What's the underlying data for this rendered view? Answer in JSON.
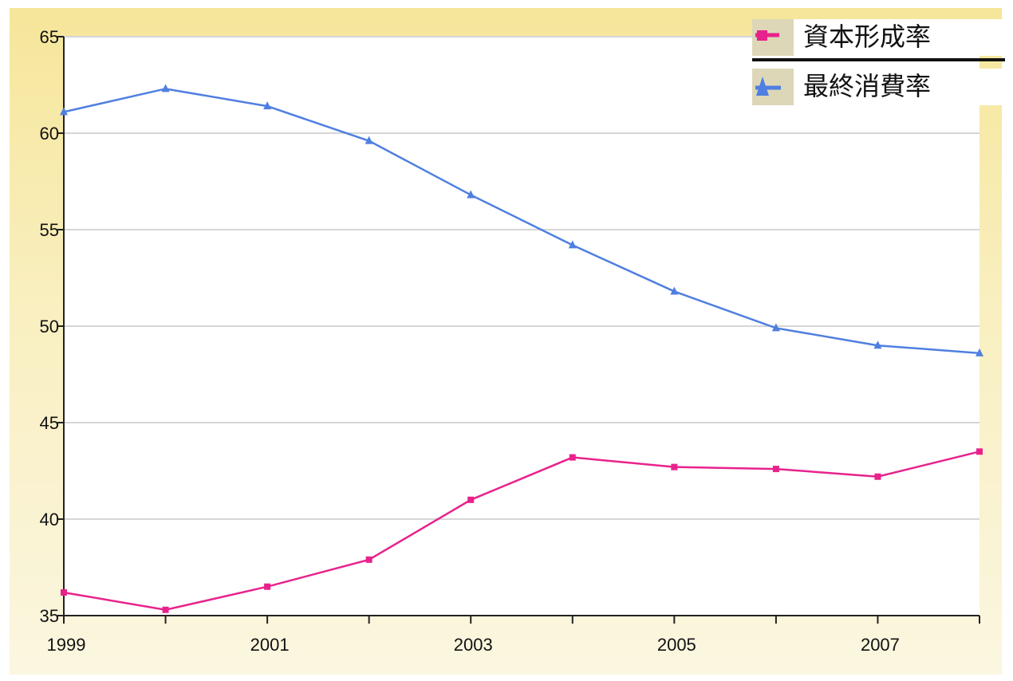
{
  "chart_data": {
    "type": "line",
    "x": [
      1999,
      2000,
      2001,
      2002,
      2003,
      2004,
      2005,
      2006,
      2007,
      2008
    ],
    "x_tick_labels": [
      "1999",
      "2001",
      "2003",
      "2005",
      "2007"
    ],
    "x_tick_values": [
      1999,
      2001,
      2003,
      2005,
      2007
    ],
    "y_tick_labels": [
      "35",
      "40",
      "45",
      "50",
      "55",
      "60",
      "65"
    ],
    "y_tick_values": [
      35,
      40,
      45,
      50,
      55,
      60,
      65
    ],
    "ylim": [
      35,
      65
    ],
    "xlim": [
      1999,
      2008
    ],
    "grid": "horizontal",
    "legend_position": "top-right",
    "series": [
      {
        "name": "資本形成率",
        "color": "#e8228c",
        "marker": "square",
        "values": [
          36.2,
          35.3,
          36.5,
          37.9,
          41.0,
          43.2,
          42.7,
          42.6,
          42.2,
          43.5
        ]
      },
      {
        "name": "最終消費率",
        "color": "#4f7fe0",
        "marker": "triangle",
        "values": [
          61.1,
          62.3,
          61.4,
          59.6,
          56.8,
          54.2,
          51.8,
          49.9,
          49.0,
          48.6
        ]
      }
    ]
  }
}
